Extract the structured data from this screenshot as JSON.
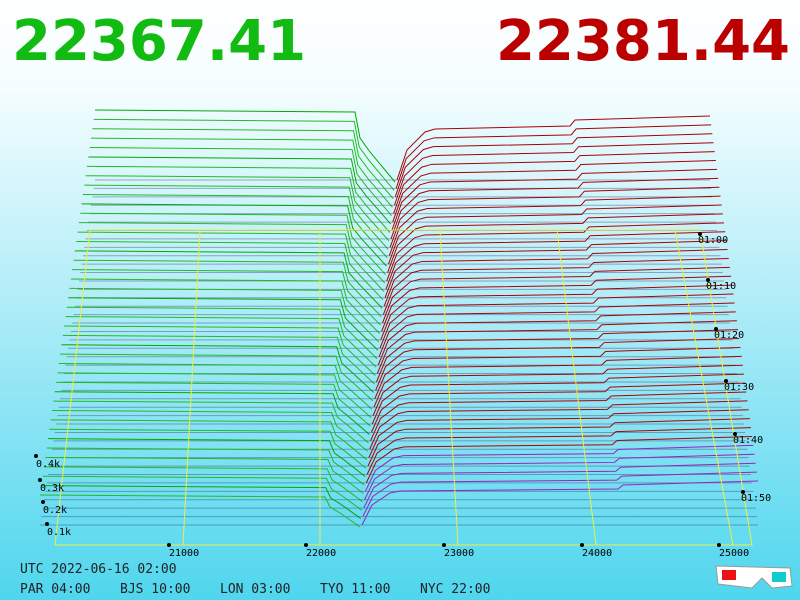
{
  "header": {
    "bid": "22367.41",
    "ask": "22381.44"
  },
  "axis": {
    "price_labels": [
      "21000",
      "22000",
      "23000",
      "24000",
      "25000"
    ],
    "volume_labels": [
      "0.4k",
      "0.3k",
      "0.2k",
      "0.1k"
    ],
    "time_labels": [
      "01:00",
      "01:10",
      "01:20",
      "01:30",
      "01:40",
      "01:50"
    ]
  },
  "footer": {
    "utc": "UTC 2022-06-16 02:00",
    "zones": [
      "PAR 04:00",
      "BJS 10:00",
      "LON 03:00",
      "TYO 11:00",
      "NYC 22:00"
    ]
  }
}
